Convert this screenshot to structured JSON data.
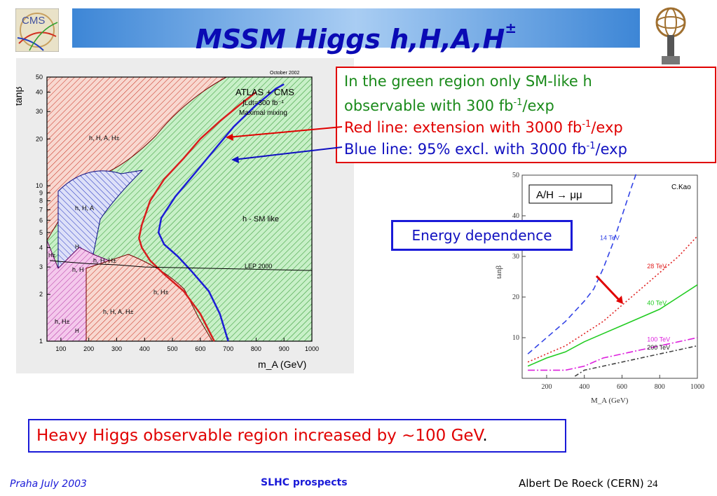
{
  "slide": {
    "title": "MSSM Higgs h,H,A,H",
    "title_sup": "±",
    "callout": {
      "line1": "In the green region only SM-like h",
      "line2_a": "observable with 300 fb",
      "line2_sup": "-1",
      "line2_b": "/exp",
      "line3_a": "Red line: extension with 3000 fb",
      "line3_sup": "-1",
      "line3_b": "/exp",
      "line4_a": "Blue line: 95% excl. with 3000 fb",
      "line4_sup": "-1",
      "line4_b": "/exp"
    },
    "energy_box": "Energy dependence",
    "bottom_box": "Heavy Higgs observable region increased by ~100 GeV",
    "footer": {
      "left": "Praha July 2003",
      "center": "SLHC prospects",
      "right": "Albert De Roeck (CERN)",
      "page": "24"
    },
    "colors": {
      "title": "#0a0ab4",
      "green": "#1a8a1a",
      "red": "#e00000",
      "blue": "#1010c0"
    }
  },
  "chart_data": [
    {
      "type": "line",
      "xlabel": "m_A (GeV)",
      "ylabel": "tanβ",
      "yscale": "log",
      "xlim": [
        50,
        1000
      ],
      "ylim": [
        1,
        50
      ],
      "xticks": [
        "100",
        "200",
        "300",
        "400",
        "500",
        "600",
        "700",
        "800",
        "900",
        "1000"
      ],
      "yticks": [
        "1",
        "2",
        "3",
        "4",
        "5",
        "6",
        "7",
        "8",
        "9",
        "10",
        "20",
        "30",
        "40",
        "50"
      ],
      "header": "October 2002",
      "legend": [
        "ATLAS + CMS",
        "∫Ldt=300 fb⁻¹",
        "Maximal mixing"
      ],
      "region_labels": [
        "h, H, A, H±",
        "h, H, A",
        "h - SM like",
        "LEP 2000",
        "H±",
        "H",
        "h, H",
        "h, H, H±",
        "h, H±",
        "h, H, A, H±",
        "h, H±",
        "H"
      ],
      "series": [
        {
          "name": "Red line",
          "color": "#d81e1e",
          "points": [
            [
              650,
              1
            ],
            [
              600,
              1.5
            ],
            [
              540,
              2.1
            ],
            [
              470,
              2.7
            ],
            [
              420,
              3.3
            ],
            [
              390,
              4
            ],
            [
              380,
              4.6
            ],
            [
              390,
              5.6
            ],
            [
              420,
              8
            ],
            [
              470,
              11
            ],
            [
              540,
              15
            ],
            [
              600,
              20
            ],
            [
              670,
              26
            ],
            [
              740,
              33
            ],
            [
              800,
              40
            ]
          ]
        },
        {
          "name": "Blue line",
          "color": "#1c1cd6",
          "points": [
            [
              700,
              1
            ],
            [
              670,
              1.5
            ],
            [
              630,
              2.1
            ],
            [
              570,
              2.8
            ],
            [
              520,
              3.5
            ],
            [
              470,
              4.2
            ],
            [
              450,
              5
            ],
            [
              460,
              6.2
            ],
            [
              510,
              8.5
            ],
            [
              580,
              12
            ],
            [
              650,
              17
            ],
            [
              720,
              24
            ],
            [
              800,
              33
            ],
            [
              870,
              42
            ],
            [
              900,
              45
            ]
          ]
        },
        {
          "name": "LEP 2000",
          "color": "#000000",
          "points": [
            [
              60,
              3.3
            ],
            [
              100,
              3.25
            ],
            [
              200,
              3.15
            ],
            [
              300,
              3.1
            ],
            [
              400,
              3.0
            ],
            [
              600,
              2.95
            ],
            [
              800,
              2.9
            ],
            [
              1000,
              2.85
            ]
          ]
        }
      ]
    },
    {
      "type": "line",
      "xlabel": "M_A (GeV)",
      "ylabel": "tanβ",
      "xlim": [
        70,
        1000
      ],
      "ylim": [
        0,
        50
      ],
      "xticks": [
        "200",
        "400",
        "600",
        "800",
        "1000"
      ],
      "yticks": [
        "10",
        "20",
        "30",
        "40",
        "50"
      ],
      "annotation": "C.Kao",
      "label": "A/H → μμ",
      "series": [
        {
          "name": "14 TeV",
          "color": "#3344e6",
          "dash": "8,5",
          "points": [
            [
              100,
              6
            ],
            [
              150,
              8
            ],
            [
              200,
              10
            ],
            [
              300,
              14
            ],
            [
              400,
              19
            ],
            [
              450,
              22
            ],
            [
              500,
              27
            ],
            [
              550,
              33
            ],
            [
              600,
              40
            ],
            [
              650,
              47
            ],
            [
              680,
              51
            ]
          ]
        },
        {
          "name": "28 TeV",
          "color": "#e02020",
          "dash": "2,3",
          "points": [
            [
              100,
              4
            ],
            [
              200,
              6
            ],
            [
              300,
              8
            ],
            [
              400,
              11
            ],
            [
              500,
              14
            ],
            [
              600,
              18
            ],
            [
              700,
              22
            ],
            [
              800,
              26
            ],
            [
              900,
              30
            ],
            [
              1000,
              35
            ]
          ]
        },
        {
          "name": "40 TeV",
          "color": "#22cc22",
          "dash": "",
          "points": [
            [
              100,
              3
            ],
            [
              200,
              5
            ],
            [
              300,
              6.5
            ],
            [
              400,
              9
            ],
            [
              500,
              11
            ],
            [
              600,
              13
            ],
            [
              700,
              15
            ],
            [
              800,
              17
            ],
            [
              900,
              20
            ],
            [
              1000,
              23
            ]
          ]
        },
        {
          "name": "100 TeV",
          "color": "#dd22dd",
          "dash": "10,3,2,3",
          "points": [
            [
              100,
              2
            ],
            [
              200,
              2
            ],
            [
              300,
              2
            ],
            [
              400,
              3
            ],
            [
              500,
              5
            ],
            [
              600,
              6
            ],
            [
              700,
              7
            ],
            [
              800,
              8
            ],
            [
              900,
              9
            ],
            [
              1000,
              10
            ]
          ]
        },
        {
          "name": "200 TeV",
          "color": "#444444",
          "dash": "6,3,2,3",
          "points": [
            [
              350,
              0.5
            ],
            [
              400,
              2
            ],
            [
              500,
              3
            ],
            [
              600,
              4
            ],
            [
              700,
              5
            ],
            [
              800,
              6
            ],
            [
              900,
              7
            ],
            [
              1000,
              8
            ]
          ]
        }
      ]
    }
  ]
}
